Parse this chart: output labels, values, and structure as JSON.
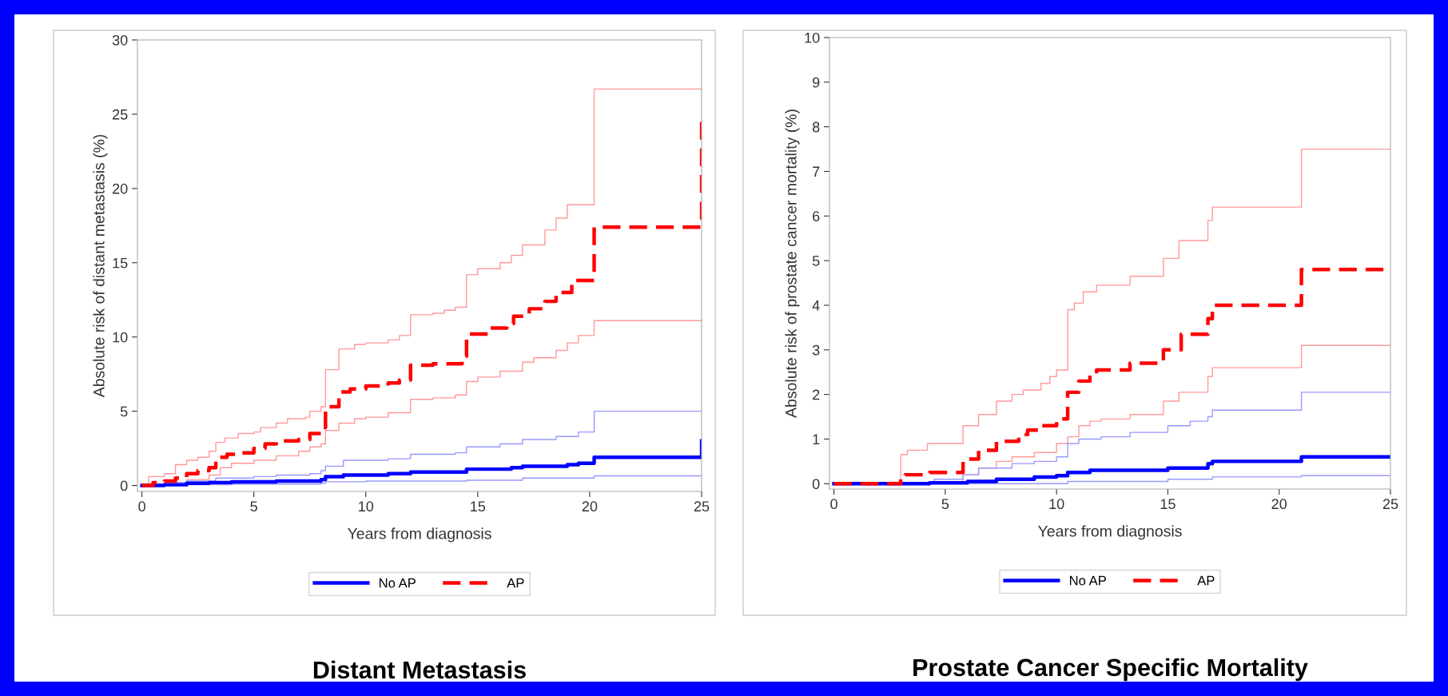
{
  "chart_data": [
    {
      "type": "step",
      "title": "Distant Metastasis",
      "xlabel": "Years from diagnosis",
      "ylabel": "Absolute risk of distant metastasis (%)",
      "xlim": [
        -0.2,
        25
      ],
      "ylim": [
        -0.4,
        30
      ],
      "xticks": [
        0,
        5,
        10,
        15,
        20,
        25
      ],
      "yticks": [
        0,
        5,
        10,
        15,
        20,
        25,
        30
      ],
      "grid": false,
      "legend": "bottom",
      "series": [
        {
          "color": "#ff9999",
          "x": [
            0,
            0.3,
            1,
            1.5,
            2,
            2.5,
            3,
            3.3,
            3.7,
            4.3,
            5,
            5.3,
            6,
            6.5,
            7.3,
            7.5,
            8,
            8.2,
            8.8,
            9.5,
            10,
            11,
            11.5,
            12,
            13,
            13.5,
            14,
            14.5,
            15,
            16,
            16.5,
            17,
            18,
            18.5,
            19,
            20.2,
            25
          ],
          "values": [
            0,
            0.6,
            0.8,
            1.4,
            1.7,
            1.9,
            2.3,
            2.9,
            3.2,
            3.5,
            3.6,
            3.9,
            4.2,
            4.5,
            4.6,
            5.0,
            5.3,
            7.8,
            9.2,
            9.5,
            9.6,
            9.8,
            10.1,
            11.5,
            11.6,
            11.8,
            12.0,
            14.2,
            14.6,
            15.0,
            15.5,
            16.2,
            17.2,
            18.0,
            18.9,
            26.7,
            26.7
          ]
        },
        {
          "color": "#ff9999",
          "x": [
            0,
            0.5,
            1,
            2,
            3,
            3.5,
            4,
            5,
            6,
            7,
            7.5,
            8,
            8.2,
            8.8,
            9.5,
            10,
            11,
            12,
            13,
            14,
            14.5,
            15,
            16,
            17,
            17.5,
            18.5,
            19,
            19.5,
            20.2,
            25
          ],
          "values": [
            0,
            0.1,
            0.2,
            0.4,
            0.7,
            1.2,
            1.5,
            1.7,
            2.0,
            2.3,
            2.6,
            2.8,
            3.7,
            4.2,
            4.5,
            4.6,
            4.9,
            5.8,
            5.9,
            6.1,
            7.0,
            7.3,
            7.7,
            8.3,
            8.6,
            9.1,
            9.6,
            10.1,
            11.1,
            11.1
          ]
        },
        {
          "color": "#9999ff",
          "x": [
            0,
            1,
            2,
            3.3,
            5,
            6,
            7.5,
            8,
            8.2,
            9,
            11,
            12,
            14,
            14.5,
            16,
            17,
            18.5,
            19.5,
            20.2,
            25
          ],
          "values": [
            0,
            0.2,
            0.3,
            0.5,
            0.6,
            0.7,
            0.8,
            1.0,
            1.3,
            1.7,
            1.8,
            2.1,
            2.2,
            2.6,
            2.8,
            3.1,
            3.3,
            3.6,
            5.0,
            5.0
          ]
        },
        {
          "color": "#9999ff",
          "x": [
            0,
            2,
            4,
            8,
            8.2,
            10,
            14.5,
            17,
            20.2,
            25
          ],
          "values": [
            0,
            0.05,
            0.1,
            0.15,
            0.25,
            0.3,
            0.35,
            0.5,
            0.65,
            0.65
          ]
        },
        {
          "name": "No AP",
          "color": "#0000ff",
          "line_style": "solid",
          "x": [
            0,
            1,
            2,
            3,
            4,
            6,
            8,
            8.2,
            9,
            11,
            12,
            14.5,
            16.5,
            17,
            19,
            19.5,
            20.2,
            25,
            25
          ],
          "values": [
            0,
            0.05,
            0.15,
            0.2,
            0.25,
            0.3,
            0.4,
            0.6,
            0.7,
            0.8,
            0.9,
            1.1,
            1.2,
            1.3,
            1.4,
            1.5,
            1.9,
            1.9,
            3.0
          ]
        },
        {
          "name": "AP",
          "color": "#ff0000",
          "line_style": "dashed",
          "x": [
            0,
            0.5,
            1,
            1.5,
            2,
            2.5,
            3,
            3.3,
            3.8,
            4.3,
            5,
            5.5,
            6,
            7,
            7.5,
            8,
            8.2,
            8.8,
            9.3,
            10,
            11,
            11.5,
            12,
            13,
            14.3,
            14.5,
            15.5,
            16.3,
            16.6,
            17.3,
            18,
            18.5,
            19.2,
            20.2,
            25,
            25
          ],
          "values": [
            0,
            0.2,
            0.3,
            0.5,
            0.8,
            1.0,
            1.2,
            1.9,
            2.1,
            2.2,
            2.5,
            2.8,
            3.0,
            3.1,
            3.5,
            3.9,
            5.3,
            6.3,
            6.5,
            6.7,
            6.9,
            7.1,
            8.1,
            8.2,
            8.7,
            10.2,
            10.6,
            10.9,
            11.4,
            11.9,
            12.4,
            13.0,
            13.8,
            17.4,
            17.4,
            24.6
          ]
        }
      ]
    },
    {
      "type": "step",
      "title": "Prostate Cancer Specific Mortality",
      "xlabel": "Years from diagnosis",
      "ylabel": "Absolute risk of prostate cancer mortality (%)",
      "xlim": [
        -0.2,
        25
      ],
      "ylim": [
        -0.12,
        10
      ],
      "xticks": [
        0,
        5,
        10,
        15,
        20,
        25
      ],
      "yticks": [
        0,
        1,
        2,
        3,
        4,
        5,
        6,
        7,
        8,
        9,
        10
      ],
      "grid": false,
      "legend": "bottom",
      "series": [
        {
          "color": "#ff9999",
          "x": [
            0,
            3,
            3.3,
            4.2,
            5.8,
            6.5,
            7.3,
            8,
            8.5,
            9.3,
            9.7,
            10,
            10.5,
            10.8,
            11.2,
            11.8,
            13.3,
            14.8,
            15.5,
            16.8,
            17,
            21,
            25
          ],
          "values": [
            0,
            0.65,
            0.75,
            0.9,
            1.3,
            1.55,
            1.85,
            2.0,
            2.1,
            2.25,
            2.4,
            2.55,
            3.9,
            4.05,
            4.3,
            4.45,
            4.65,
            5.05,
            5.45,
            5.9,
            6.2,
            7.5,
            7.5
          ]
        },
        {
          "color": "#ff9999",
          "x": [
            0,
            5.8,
            6.5,
            7.3,
            8,
            9,
            10,
            10.5,
            11,
            11.5,
            12,
            13.3,
            14.8,
            15.5,
            16.8,
            17,
            21,
            25
          ],
          "values": [
            0,
            0.2,
            0.35,
            0.5,
            0.6,
            0.7,
            0.9,
            1.05,
            1.3,
            1.4,
            1.45,
            1.55,
            1.85,
            2.05,
            2.4,
            2.6,
            3.1,
            3.1
          ]
        },
        {
          "color": "#9999ff",
          "x": [
            0,
            4.5,
            5.8,
            6.5,
            8,
            9,
            10,
            10.5,
            11,
            12,
            13.3,
            15,
            16,
            16.8,
            17,
            21,
            25
          ],
          "values": [
            0,
            0.1,
            0.2,
            0.35,
            0.45,
            0.5,
            0.6,
            0.9,
            1.0,
            1.05,
            1.15,
            1.3,
            1.4,
            1.5,
            1.65,
            2.05,
            2.05
          ]
        },
        {
          "color": "#9999ff",
          "x": [
            0,
            10.5,
            15,
            17,
            21,
            25
          ],
          "values": [
            0,
            0.05,
            0.1,
            0.15,
            0.18,
            0.18
          ]
        },
        {
          "name": "No AP",
          "color": "#0000ff",
          "line_style": "solid",
          "x": [
            0,
            4.3,
            6,
            7.3,
            9,
            10,
            10.5,
            11.5,
            15,
            16.8,
            17,
            21,
            25
          ],
          "values": [
            0,
            0.02,
            0.05,
            0.1,
            0.15,
            0.18,
            0.25,
            0.3,
            0.35,
            0.45,
            0.5,
            0.6,
            0.6
          ]
        },
        {
          "name": "AP",
          "color": "#ff0000",
          "line_style": "dashed",
          "x": [
            0,
            3,
            3.2,
            4.3,
            5.8,
            6.5,
            7.3,
            8.3,
            8.7,
            9.3,
            10,
            10.5,
            11,
            11.5,
            11.8,
            13.3,
            14.8,
            15.6,
            16.8,
            17,
            21,
            25
          ],
          "values": [
            0,
            0.1,
            0.2,
            0.25,
            0.55,
            0.75,
            0.95,
            1.1,
            1.2,
            1.3,
            1.45,
            2.05,
            2.3,
            2.45,
            2.55,
            2.7,
            3.0,
            3.35,
            3.7,
            4.0,
            4.8,
            4.8
          ]
        }
      ]
    }
  ]
}
